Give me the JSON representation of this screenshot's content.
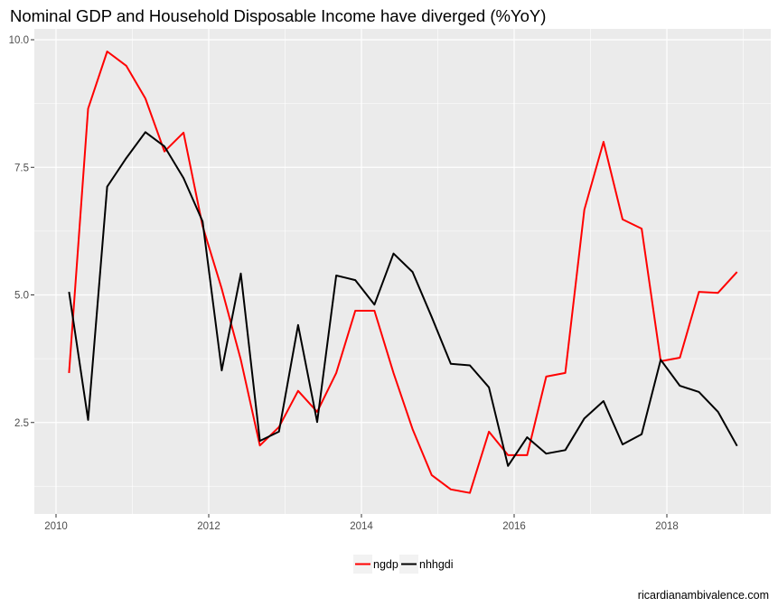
{
  "chart_data": {
    "type": "line",
    "title": "Nominal GDP and Household Disposable Income have diverged (%YoY)",
    "xlabel": "",
    "ylabel": "",
    "xlim": [
      2009.75,
      2019.4
    ],
    "ylim": [
      0.8,
      10.2
    ],
    "x_ticks": [
      2010,
      2012,
      2014,
      2016,
      2018
    ],
    "x_tick_labels": [
      "2010",
      "2012",
      "2014",
      "2016",
      "2018"
    ],
    "x_minor_gridlines": [
      2011,
      2013,
      2015,
      2017,
      2019
    ],
    "y_ticks": [
      2.5,
      5.0,
      7.5,
      10.0
    ],
    "y_tick_labels": [
      "2.5",
      "5.0",
      "7.5",
      "10.0"
    ],
    "y_minor_gridlines": [
      1.25,
      3.75,
      6.25,
      8.75
    ],
    "grid": true,
    "legend_position": "bottom",
    "x": [
      2010.17,
      2010.42,
      2010.67,
      2010.92,
      2011.17,
      2011.42,
      2011.67,
      2011.92,
      2012.17,
      2012.42,
      2012.67,
      2012.92,
      2013.17,
      2013.42,
      2013.67,
      2013.92,
      2014.17,
      2014.42,
      2014.67,
      2014.92,
      2015.17,
      2015.42,
      2015.67,
      2015.92,
      2016.17,
      2016.42,
      2016.67,
      2016.92,
      2017.17,
      2017.42,
      2017.67,
      2017.92,
      2018.17,
      2018.42,
      2018.67,
      2018.92
    ],
    "series": [
      {
        "name": "ngdp",
        "color": "#ff0000",
        "values": [
          3.47,
          8.65,
          9.77,
          9.49,
          8.85,
          7.81,
          8.18,
          6.35,
          5.12,
          3.73,
          2.05,
          2.41,
          3.12,
          2.71,
          3.47,
          4.69,
          4.69,
          3.47,
          2.37,
          1.47,
          1.19,
          1.12,
          2.32,
          1.86,
          1.86,
          3.4,
          3.47,
          6.67,
          8.0,
          6.48,
          6.3,
          3.7,
          3.77,
          5.06,
          5.04,
          5.45
        ]
      },
      {
        "name": "nhhgdi",
        "color": "#000000",
        "values": [
          5.06,
          2.55,
          7.12,
          7.68,
          8.19,
          7.91,
          7.29,
          6.44,
          3.52,
          5.42,
          2.14,
          2.32,
          4.41,
          2.51,
          5.38,
          5.29,
          4.81,
          5.81,
          5.45,
          4.57,
          3.65,
          3.62,
          3.19,
          1.65,
          2.21,
          1.89,
          1.96,
          2.58,
          2.92,
          2.07,
          2.27,
          3.73,
          3.22,
          3.1,
          2.71,
          2.04
        ]
      }
    ]
  },
  "credit": "ricardianambivalence.com",
  "colors": {
    "panel_background": "#ebebeb",
    "gridline": "#ffffff",
    "tick_label": "#4d4d4d",
    "legend_key_background": "#f2f2f2"
  }
}
